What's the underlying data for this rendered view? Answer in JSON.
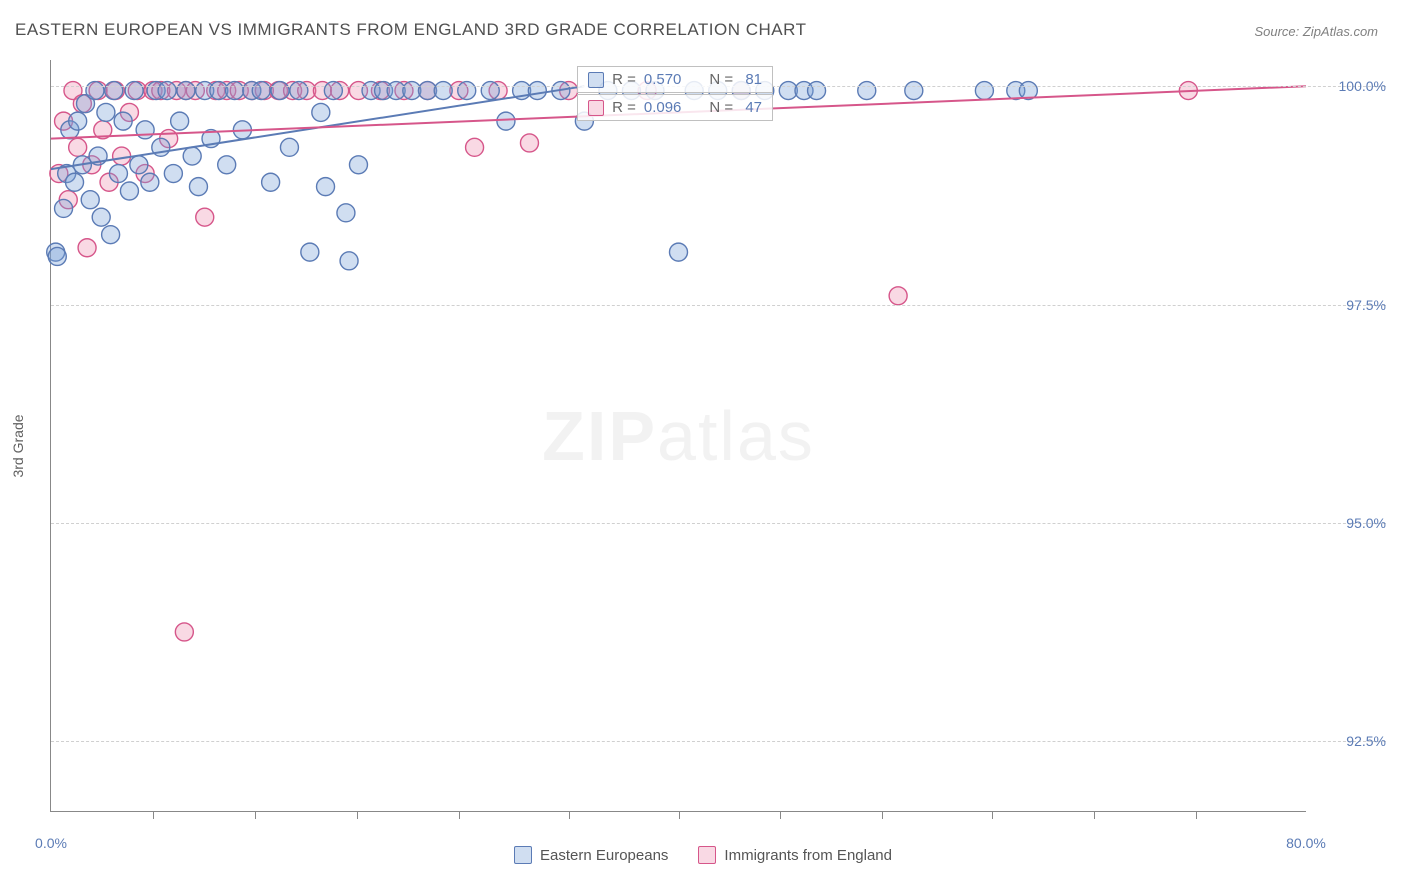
{
  "title": "EASTERN EUROPEAN VS IMMIGRANTS FROM ENGLAND 3RD GRADE CORRELATION CHART",
  "source": "Source: ZipAtlas.com",
  "y_axis_label": "3rd Grade",
  "watermark_bold": "ZIP",
  "watermark_light": "atlas",
  "chart": {
    "type": "scatter",
    "xlim": [
      0,
      80
    ],
    "ylim": [
      91.7,
      100.3
    ],
    "x_ticks": [
      0,
      80
    ],
    "x_tick_labels": [
      "0.0%",
      "80.0%"
    ],
    "x_minor_ticks": [
      6.5,
      13,
      19.5,
      26,
      33,
      40,
      46.5,
      53,
      60,
      66.5,
      73
    ],
    "y_gridlines": [
      92.5,
      95.0,
      97.5,
      100.0
    ],
    "y_tick_labels": [
      "92.5%",
      "95.0%",
      "97.5%",
      "100.0%"
    ],
    "background_color": "#ffffff",
    "grid_color": "#d0d0d0",
    "axis_color": "#888888",
    "tick_label_color": "#5b7bb5",
    "marker_radius": 9,
    "marker_stroke_width": 1.4,
    "line_width": 2
  },
  "series": [
    {
      "name": "Eastern Europeans",
      "fill": "rgba(120,160,215,0.35)",
      "stroke": "#5b7bb5",
      "trend": {
        "x1": 0,
        "y1": 99.05,
        "x2": 34,
        "y2": 100.0
      },
      "stats": {
        "R": "0.570",
        "N": "81"
      },
      "points": [
        [
          0.3,
          98.1
        ],
        [
          0.4,
          98.05
        ],
        [
          0.8,
          98.6
        ],
        [
          1.0,
          99.0
        ],
        [
          1.2,
          99.5
        ],
        [
          1.5,
          98.9
        ],
        [
          1.7,
          99.6
        ],
        [
          2.0,
          99.1
        ],
        [
          2.2,
          99.8
        ],
        [
          2.5,
          98.7
        ],
        [
          2.8,
          99.95
        ],
        [
          3.0,
          99.2
        ],
        [
          3.2,
          98.5
        ],
        [
          3.5,
          99.7
        ],
        [
          3.8,
          98.3
        ],
        [
          4.0,
          99.95
        ],
        [
          4.3,
          99.0
        ],
        [
          4.6,
          99.6
        ],
        [
          5.0,
          98.8
        ],
        [
          5.3,
          99.95
        ],
        [
          5.6,
          99.1
        ],
        [
          6.0,
          99.5
        ],
        [
          6.3,
          98.9
        ],
        [
          6.7,
          99.95
        ],
        [
          7.0,
          99.3
        ],
        [
          7.4,
          99.95
        ],
        [
          7.8,
          99.0
        ],
        [
          8.2,
          99.6
        ],
        [
          8.6,
          99.95
        ],
        [
          9.0,
          99.2
        ],
        [
          9.4,
          98.85
        ],
        [
          9.8,
          99.95
        ],
        [
          10.2,
          99.4
        ],
        [
          10.7,
          99.95
        ],
        [
          11.2,
          99.1
        ],
        [
          11.7,
          99.95
        ],
        [
          12.2,
          99.5
        ],
        [
          12.8,
          99.95
        ],
        [
          13.4,
          99.95
        ],
        [
          14.0,
          98.9
        ],
        [
          14.6,
          99.95
        ],
        [
          15.2,
          99.3
        ],
        [
          15.8,
          99.95
        ],
        [
          16.5,
          98.1
        ],
        [
          17.2,
          99.7
        ],
        [
          17.5,
          98.85
        ],
        [
          18.0,
          99.95
        ],
        [
          18.8,
          98.55
        ],
        [
          19.0,
          98.0
        ],
        [
          19.6,
          99.1
        ],
        [
          20.4,
          99.95
        ],
        [
          21.2,
          99.95
        ],
        [
          22.0,
          99.95
        ],
        [
          23.0,
          99.95
        ],
        [
          24.0,
          99.95
        ],
        [
          25.0,
          99.95
        ],
        [
          26.5,
          99.95
        ],
        [
          28.0,
          99.95
        ],
        [
          29.0,
          99.6
        ],
        [
          30.0,
          99.95
        ],
        [
          31.0,
          99.95
        ],
        [
          32.5,
          99.95
        ],
        [
          34.0,
          99.6
        ],
        [
          35.5,
          99.95
        ],
        [
          37.0,
          99.95
        ],
        [
          38.5,
          99.95
        ],
        [
          40.0,
          98.1
        ],
        [
          41.0,
          99.95
        ],
        [
          42.5,
          99.95
        ],
        [
          44.0,
          99.95
        ],
        [
          45.5,
          99.95
        ],
        [
          47.0,
          99.95
        ],
        [
          48.0,
          99.95
        ],
        [
          48.8,
          99.95
        ],
        [
          52.0,
          99.95
        ],
        [
          55.0,
          99.95
        ],
        [
          59.5,
          99.95
        ],
        [
          61.5,
          99.95
        ],
        [
          62.3,
          99.95
        ]
      ]
    },
    {
      "name": "Immigrants from England",
      "fill": "rgba(235,130,165,0.30)",
      "stroke": "#d6568a",
      "trend": {
        "x1": 0,
        "y1": 99.4,
        "x2": 80,
        "y2": 100.0
      },
      "stats": {
        "R": "0.096",
        "N": "47"
      },
      "points": [
        [
          0.5,
          99.0
        ],
        [
          0.8,
          99.6
        ],
        [
          1.1,
          98.7
        ],
        [
          1.4,
          99.95
        ],
        [
          1.7,
          99.3
        ],
        [
          2.0,
          99.8
        ],
        [
          2.3,
          98.15
        ],
        [
          2.6,
          99.1
        ],
        [
          3.0,
          99.95
        ],
        [
          3.3,
          99.5
        ],
        [
          3.7,
          98.9
        ],
        [
          4.1,
          99.95
        ],
        [
          4.5,
          99.2
        ],
        [
          5.0,
          99.7
        ],
        [
          5.5,
          99.95
        ],
        [
          6.0,
          99.0
        ],
        [
          6.5,
          99.95
        ],
        [
          7.0,
          99.95
        ],
        [
          7.5,
          99.4
        ],
        [
          8.0,
          99.95
        ],
        [
          8.6,
          99.95
        ],
        [
          9.2,
          99.95
        ],
        [
          9.8,
          98.5
        ],
        [
          10.5,
          99.95
        ],
        [
          11.2,
          99.95
        ],
        [
          12.0,
          99.95
        ],
        [
          12.8,
          99.95
        ],
        [
          13.6,
          99.95
        ],
        [
          14.5,
          99.95
        ],
        [
          15.4,
          99.95
        ],
        [
          16.3,
          99.95
        ],
        [
          17.3,
          99.95
        ],
        [
          18.4,
          99.95
        ],
        [
          19.6,
          99.95
        ],
        [
          21.0,
          99.95
        ],
        [
          22.5,
          99.95
        ],
        [
          24.0,
          99.95
        ],
        [
          26.0,
          99.95
        ],
        [
          27.0,
          99.3
        ],
        [
          28.5,
          99.95
        ],
        [
          30.5,
          99.35
        ],
        [
          33.0,
          99.95
        ],
        [
          38.0,
          99.95
        ],
        [
          44.0,
          99.95
        ],
        [
          54.0,
          97.6
        ],
        [
          72.5,
          99.95
        ],
        [
          8.5,
          93.75
        ]
      ]
    }
  ],
  "legend": {
    "items": [
      {
        "label": "Eastern Europeans",
        "series": 0
      },
      {
        "label": "Immigrants from England",
        "series": 1
      }
    ]
  },
  "stats_box_labels": {
    "r": "R =",
    "n": "N ="
  }
}
